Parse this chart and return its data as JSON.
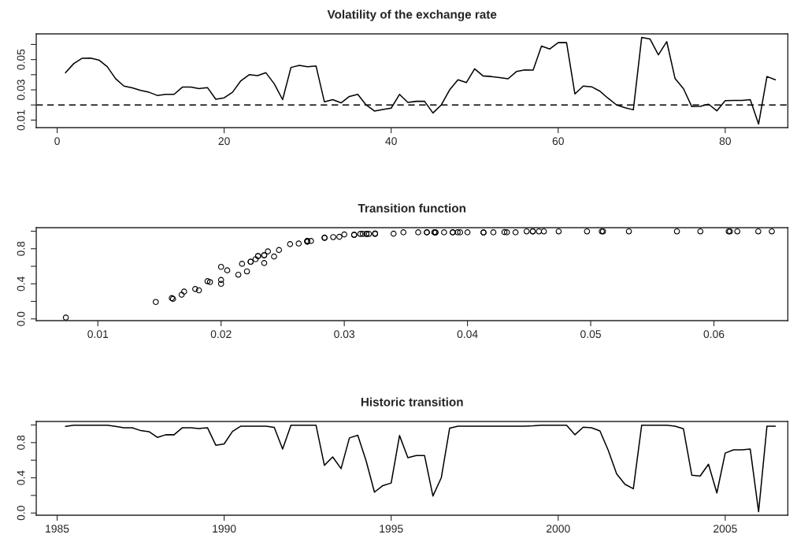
{
  "chart_data": [
    {
      "type": "line",
      "title": "Volatility of the exchange rate",
      "x": [
        1,
        2,
        3,
        4,
        5,
        6,
        7,
        8,
        9,
        10,
        11,
        12,
        13,
        14,
        15,
        16,
        17,
        18,
        19,
        20,
        21,
        22,
        23,
        24,
        25,
        26,
        27,
        28,
        29,
        30,
        31,
        32,
        33,
        34,
        35,
        36,
        37,
        38,
        39,
        40,
        41,
        42,
        43,
        44,
        45,
        46,
        47,
        48,
        49,
        50,
        51,
        52,
        53,
        54,
        55,
        56,
        57,
        58,
        59,
        60,
        61,
        62,
        63,
        64,
        65,
        66,
        67,
        68,
        69,
        70,
        71,
        72,
        73,
        74,
        75,
        76,
        77,
        78,
        79,
        80,
        81,
        82,
        83,
        84,
        85,
        86
      ],
      "series": [
        {
          "color": "#000000",
          "line_style": "solid",
          "values": [
            0.0413,
            0.0474,
            0.0509,
            0.051,
            0.0497,
            0.0453,
            0.0374,
            0.0325,
            0.0313,
            0.0296,
            0.0284,
            0.0263,
            0.027,
            0.027,
            0.0318,
            0.0318,
            0.0308,
            0.0315,
            0.0238,
            0.0247,
            0.0284,
            0.036,
            0.04,
            0.0394,
            0.0413,
            0.034,
            0.0235,
            0.0448,
            0.0462,
            0.0453,
            0.0458,
            0.0221,
            0.0235,
            0.0214,
            0.0256,
            0.027,
            0.02,
            0.016,
            0.017,
            0.0179,
            0.027,
            0.0217,
            0.0224,
            0.0224,
            0.0147,
            0.02,
            0.03,
            0.0367,
            0.0348,
            0.0439,
            0.0392,
            0.0388,
            0.0381,
            0.0373,
            0.0421,
            0.0432,
            0.043,
            0.0589,
            0.057,
            0.0612,
            0.0613,
            0.0273,
            0.0325,
            0.032,
            0.0291,
            0.0243,
            0.02,
            0.0182,
            0.0168,
            0.0647,
            0.0636,
            0.0531,
            0.0619,
            0.0374,
            0.0308,
            0.0189,
            0.0191,
            0.0205,
            0.0161,
            0.0228,
            0.023,
            0.023,
            0.0235,
            0.0074,
            0.0388,
            0.0367
          ]
        }
      ],
      "xlim": [
        -2.5,
        87.5
      ],
      "ylim": [
        0.005,
        0.067
      ],
      "xticks": [
        0,
        20,
        40,
        60,
        80
      ],
      "yticks": [
        0.01,
        {
          "value": 0.02,
          "label": null
        },
        0.03,
        {
          "value": 0.04,
          "label": null
        },
        0.05,
        {
          "value": 0.06,
          "label": null
        }
      ],
      "ref_lines": [
        {
          "axis": "y",
          "value": 0.02,
          "color": "#000000",
          "line_style": "dashed"
        }
      ],
      "grid": false
    },
    {
      "type": "scatter",
      "title": "Transition function",
      "x": [
        0.0413,
        0.0474,
        0.0509,
        0.051,
        0.0497,
        0.0453,
        0.0374,
        0.0325,
        0.0313,
        0.0296,
        0.0284,
        0.0263,
        0.027,
        0.027,
        0.0318,
        0.0318,
        0.0308,
        0.0315,
        0.0238,
        0.0247,
        0.0284,
        0.036,
        0.04,
        0.0394,
        0.0413,
        0.034,
        0.0235,
        0.0448,
        0.0462,
        0.0453,
        0.0458,
        0.0221,
        0.0235,
        0.0214,
        0.0256,
        0.027,
        0.02,
        0.016,
        0.017,
        0.0179,
        0.027,
        0.0217,
        0.0224,
        0.0224,
        0.0147,
        0.02,
        0.03,
        0.0367,
        0.0348,
        0.0439,
        0.0392,
        0.0388,
        0.0381,
        0.0373,
        0.0421,
        0.0432,
        0.043,
        0.0589,
        0.057,
        0.0612,
        0.0613,
        0.0273,
        0.0325,
        0.032,
        0.0291,
        0.0243,
        0.02,
        0.0182,
        0.0168,
        0.0647,
        0.0636,
        0.0531,
        0.0619,
        0.0374,
        0.0308,
        0.0189,
        0.0191,
        0.0205,
        0.0161,
        0.0228,
        0.023,
        0.023,
        0.0235,
        0.0074,
        0.0388,
        0.0367
      ],
      "series": [
        {
          "color": "#000000",
          "marker": "circle",
          "values": [
            0.984,
            0.998,
            0.998,
            0.998,
            0.998,
            0.998,
            0.984,
            0.969,
            0.969,
            0.936,
            0.924,
            0.859,
            0.889,
            0.889,
            0.969,
            0.969,
            0.96,
            0.969,
            0.77,
            0.785,
            0.927,
            0.987,
            0.987,
            0.987,
            0.987,
            0.972,
            0.726,
            0.998,
            0.998,
            0.998,
            0.998,
            0.542,
            0.637,
            0.504,
            0.853,
            0.883,
            0.593,
            0.237,
            0.311,
            0.341,
            0.88,
            0.628,
            0.652,
            0.652,
            0.193,
            0.4,
            0.963,
            0.987,
            0.987,
            0.987,
            0.987,
            0.987,
            0.987,
            0.987,
            0.987,
            0.987,
            0.99,
            0.998,
            0.998,
            0.998,
            0.998,
            0.889,
            0.975,
            0.969,
            0.933,
            0.711,
            0.444,
            0.326,
            0.276,
            0.998,
            0.998,
            0.998,
            0.998,
            0.987,
            0.957,
            0.43,
            0.42,
            0.554,
            0.228,
            0.681,
            0.717,
            0.717,
            0.726,
            0.015,
            0.987,
            0.987
          ]
        }
      ],
      "xlim": [
        0.005,
        0.066
      ],
      "ylim": [
        -0.02,
        1.04
      ],
      "xticks": [
        0.01,
        0.02,
        0.03,
        0.04,
        0.05,
        0.06
      ],
      "yticks": [
        {
          "value": 0,
          "label": "0.0"
        },
        {
          "value": 0.2,
          "label": null
        },
        0.4,
        {
          "value": 0.6,
          "label": null
        },
        0.8,
        {
          "value": 1.0,
          "label": null
        }
      ],
      "grid": false
    },
    {
      "type": "line",
      "title": "Historic transition",
      "x": [
        1985.25,
        1985.5,
        1985.75,
        1986,
        1986.25,
        1986.5,
        1986.75,
        1987,
        1987.25,
        1987.5,
        1987.75,
        1988,
        1988.25,
        1988.5,
        1988.75,
        1989,
        1989.25,
        1989.5,
        1989.75,
        1990,
        1990.25,
        1990.5,
        1990.75,
        1991,
        1991.25,
        1991.5,
        1991.75,
        1992,
        1992.25,
        1992.5,
        1992.75,
        1993,
        1993.25,
        1993.5,
        1993.75,
        1994,
        1994.25,
        1994.5,
        1994.75,
        1995,
        1995.25,
        1995.5,
        1995.75,
        1996,
        1996.25,
        1996.5,
        1996.75,
        1997,
        1997.25,
        1997.5,
        1997.75,
        1998,
        1998.25,
        1998.5,
        1998.75,
        1999,
        1999.25,
        1999.5,
        1999.75,
        2000,
        2000.25,
        2000.5,
        2000.75,
        2001,
        2001.25,
        2001.5,
        2001.75,
        2002,
        2002.25,
        2002.5,
        2002.75,
        2003,
        2003.25,
        2003.5,
        2003.75,
        2004,
        2004.25,
        2004.5,
        2004.75,
        2005,
        2005.25,
        2005.5,
        2005.75,
        2006,
        2006.25,
        2006.5
      ],
      "series": [
        {
          "color": "#000000",
          "line_style": "solid",
          "values": [
            0.984,
            0.998,
            0.998,
            0.998,
            0.998,
            0.998,
            0.984,
            0.969,
            0.969,
            0.936,
            0.924,
            0.859,
            0.889,
            0.889,
            0.969,
            0.969,
            0.96,
            0.969,
            0.77,
            0.785,
            0.927,
            0.987,
            0.987,
            0.987,
            0.987,
            0.972,
            0.726,
            0.998,
            0.998,
            0.998,
            0.998,
            0.542,
            0.637,
            0.504,
            0.853,
            0.883,
            0.593,
            0.237,
            0.311,
            0.341,
            0.88,
            0.628,
            0.652,
            0.652,
            0.193,
            0.4,
            0.963,
            0.987,
            0.987,
            0.987,
            0.987,
            0.987,
            0.987,
            0.987,
            0.987,
            0.987,
            0.99,
            0.998,
            0.998,
            0.998,
            0.998,
            0.889,
            0.975,
            0.969,
            0.933,
            0.711,
            0.444,
            0.326,
            0.276,
            0.998,
            0.998,
            0.998,
            0.998,
            0.987,
            0.957,
            0.43,
            0.42,
            0.554,
            0.228,
            0.681,
            0.717,
            0.717,
            0.726,
            0.015,
            0.987,
            0.987
          ]
        }
      ],
      "xlim": [
        1984.375,
        2006.875
      ],
      "ylim": [
        -0.025,
        1.04
      ],
      "xticks": [
        1985,
        1990,
        1995,
        2000,
        2005
      ],
      "yticks": [
        {
          "value": 0,
          "label": "0.0"
        },
        {
          "value": 0.2,
          "label": null
        },
        0.4,
        {
          "value": 0.6,
          "label": null
        },
        0.8,
        {
          "value": 1.0,
          "label": null
        }
      ],
      "grid": false
    }
  ]
}
